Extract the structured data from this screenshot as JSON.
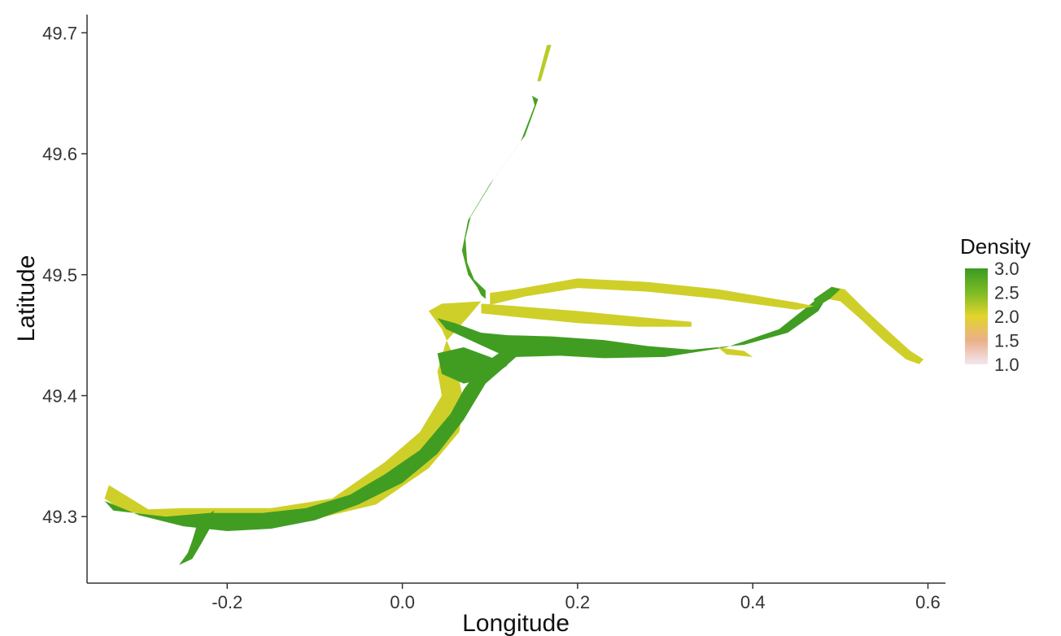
{
  "chart_data": {
    "type": "map",
    "xlabel": "Longitude",
    "ylabel": "Latitude",
    "xlim": [
      -0.36,
      0.62
    ],
    "ylim": [
      49.245,
      49.715
    ],
    "x_ticks": [
      {
        "value": -0.2,
        "label": "-0.2"
      },
      {
        "value": 0.0,
        "label": "0.0"
      },
      {
        "value": 0.2,
        "label": "0.2"
      },
      {
        "value": 0.4,
        "label": "0.4"
      },
      {
        "value": 0.6,
        "label": "0.6"
      }
    ],
    "y_ticks": [
      {
        "value": 49.3,
        "label": "49.3"
      },
      {
        "value": 49.4,
        "label": "49.4"
      },
      {
        "value": 49.5,
        "label": "49.5"
      },
      {
        "value": 49.6,
        "label": "49.6"
      },
      {
        "value": 49.7,
        "label": "49.7"
      }
    ],
    "grid": false,
    "legend": {
      "title": "Density",
      "position": "right",
      "range": [
        1.0,
        3.0
      ],
      "labels": [
        "3.0",
        "2.5",
        "2.0",
        "1.5",
        "1.0"
      ],
      "colors": {
        "1.0": "#f3e6f0",
        "1.5": "#eab08a",
        "2.0": "#e3d42c",
        "2.5": "#7dbb24",
        "3.0": "#3a9a22"
      }
    },
    "regions": [
      {
        "density": 2.1,
        "polygon": [
          [
            -0.34,
            49.315
          ],
          [
            -0.32,
            49.305
          ],
          [
            -0.25,
            49.296
          ],
          [
            -0.18,
            49.292
          ],
          [
            -0.1,
            49.298
          ],
          [
            -0.03,
            49.31
          ],
          [
            0.03,
            49.34
          ],
          [
            0.065,
            49.37
          ],
          [
            0.07,
            49.395
          ],
          [
            0.06,
            49.43
          ],
          [
            0.045,
            49.455
          ],
          [
            0.03,
            49.47
          ],
          [
            0.045,
            49.476
          ],
          [
            0.09,
            49.478
          ],
          [
            0.075,
            49.465
          ],
          [
            0.05,
            49.445
          ],
          [
            0.04,
            49.42
          ],
          [
            0.045,
            49.4
          ],
          [
            0.02,
            49.37
          ],
          [
            -0.02,
            49.345
          ],
          [
            -0.08,
            49.315
          ],
          [
            -0.15,
            49.307
          ],
          [
            -0.25,
            49.307
          ],
          [
            -0.29,
            49.306
          ],
          [
            -0.335,
            49.326
          ]
        ]
      },
      {
        "density": 2.95,
        "polygon": [
          [
            -0.34,
            49.313
          ],
          [
            -0.3,
            49.301
          ],
          [
            -0.25,
            49.292
          ],
          [
            -0.2,
            49.288
          ],
          [
            -0.15,
            49.29
          ],
          [
            -0.1,
            49.297
          ],
          [
            -0.05,
            49.31
          ],
          [
            0.0,
            49.328
          ],
          [
            0.04,
            49.352
          ],
          [
            0.07,
            49.38
          ],
          [
            0.095,
            49.41
          ],
          [
            0.13,
            49.432
          ],
          [
            0.18,
            49.433
          ],
          [
            0.23,
            49.431
          ],
          [
            0.3,
            49.432
          ],
          [
            0.37,
            49.44
          ],
          [
            0.43,
            49.455
          ],
          [
            0.47,
            49.478
          ],
          [
            0.485,
            49.482
          ],
          [
            0.475,
            49.47
          ],
          [
            0.44,
            49.452
          ],
          [
            0.39,
            49.442
          ],
          [
            0.33,
            49.438
          ],
          [
            0.28,
            49.441
          ],
          [
            0.23,
            49.446
          ],
          [
            0.17,
            49.449
          ],
          [
            0.12,
            49.45
          ],
          [
            0.09,
            49.452
          ],
          [
            0.06,
            49.46
          ],
          [
            0.04,
            49.464
          ],
          [
            0.05,
            49.455
          ],
          [
            0.08,
            49.445
          ],
          [
            0.11,
            49.435
          ],
          [
            0.09,
            49.425
          ],
          [
            0.07,
            49.405
          ],
          [
            0.055,
            49.385
          ],
          [
            0.02,
            49.355
          ],
          [
            -0.02,
            49.335
          ],
          [
            -0.06,
            49.318
          ],
          [
            -0.11,
            49.307
          ],
          [
            -0.16,
            49.303
          ],
          [
            -0.22,
            49.303
          ],
          [
            -0.27,
            49.3
          ],
          [
            -0.33,
            49.305
          ]
        ]
      },
      {
        "density": 2.95,
        "polygon": [
          [
            0.04,
            49.435
          ],
          [
            0.07,
            49.44
          ],
          [
            0.1,
            49.432
          ],
          [
            0.12,
            49.425
          ],
          [
            0.1,
            49.415
          ],
          [
            0.07,
            49.41
          ],
          [
            0.045,
            49.418
          ]
        ]
      },
      {
        "density": 2.95,
        "polygon": [
          [
            -0.255,
            49.26
          ],
          [
            -0.245,
            49.27
          ],
          [
            -0.24,
            49.28
          ],
          [
            -0.235,
            49.292
          ],
          [
            -0.225,
            49.3
          ],
          [
            -0.215,
            49.305
          ],
          [
            -0.22,
            49.29
          ],
          [
            -0.23,
            49.277
          ],
          [
            -0.24,
            49.265
          ]
        ]
      },
      {
        "density": 2.9,
        "polygon": [
          [
            0.148,
            49.648
          ],
          [
            0.151,
            49.64
          ],
          [
            0.135,
            49.61
          ],
          [
            0.1,
            49.575
          ],
          [
            0.075,
            49.545
          ],
          [
            0.068,
            49.52
          ],
          [
            0.075,
            49.5
          ],
          [
            0.085,
            49.49
          ],
          [
            0.09,
            49.483
          ],
          [
            0.095,
            49.48
          ],
          [
            0.095,
            49.487
          ],
          [
            0.082,
            49.496
          ],
          [
            0.074,
            49.51
          ],
          [
            0.072,
            49.53
          ],
          [
            0.078,
            49.548
          ],
          [
            0.105,
            49.58
          ],
          [
            0.14,
            49.615
          ],
          [
            0.155,
            49.645
          ]
        ]
      },
      {
        "density": 2.2,
        "polygon": [
          [
            0.165,
            49.69
          ],
          [
            0.17,
            49.69
          ],
          [
            0.158,
            49.66
          ],
          [
            0.154,
            49.66
          ]
        ]
      },
      {
        "density": 2.1,
        "polygon": [
          [
            0.1,
            49.485
          ],
          [
            0.13,
            49.488
          ],
          [
            0.2,
            49.497
          ],
          [
            0.28,
            49.494
          ],
          [
            0.36,
            49.488
          ],
          [
            0.45,
            49.477
          ],
          [
            0.47,
            49.474
          ],
          [
            0.45,
            49.471
          ],
          [
            0.36,
            49.48
          ],
          [
            0.28,
            49.486
          ],
          [
            0.2,
            49.489
          ],
          [
            0.14,
            49.482
          ],
          [
            0.1,
            49.475
          ]
        ]
      },
      {
        "density": 2.1,
        "polygon": [
          [
            0.09,
            49.476
          ],
          [
            0.13,
            49.474
          ],
          [
            0.2,
            49.47
          ],
          [
            0.27,
            49.465
          ],
          [
            0.33,
            49.461
          ],
          [
            0.33,
            49.457
          ],
          [
            0.27,
            49.457
          ],
          [
            0.2,
            49.46
          ],
          [
            0.13,
            49.465
          ],
          [
            0.09,
            49.468
          ]
        ]
      },
      {
        "density": 2.1,
        "polygon": [
          [
            0.49,
            49.49
          ],
          [
            0.505,
            49.488
          ],
          [
            0.53,
            49.47
          ],
          [
            0.56,
            49.45
          ],
          [
            0.58,
            49.437
          ],
          [
            0.595,
            49.43
          ],
          [
            0.59,
            49.426
          ],
          [
            0.575,
            49.43
          ],
          [
            0.55,
            49.445
          ],
          [
            0.525,
            49.462
          ],
          [
            0.5,
            49.478
          ],
          [
            0.485,
            49.48
          ]
        ]
      },
      {
        "density": 2.9,
        "polygon": [
          [
            0.47,
            49.48
          ],
          [
            0.49,
            49.49
          ],
          [
            0.5,
            49.488
          ],
          [
            0.488,
            49.48
          ],
          [
            0.47,
            49.472
          ]
        ]
      },
      {
        "density": 2.1,
        "polygon": [
          [
            0.36,
            49.44
          ],
          [
            0.39,
            49.437
          ],
          [
            0.4,
            49.432
          ],
          [
            0.37,
            49.434
          ]
        ]
      }
    ]
  }
}
